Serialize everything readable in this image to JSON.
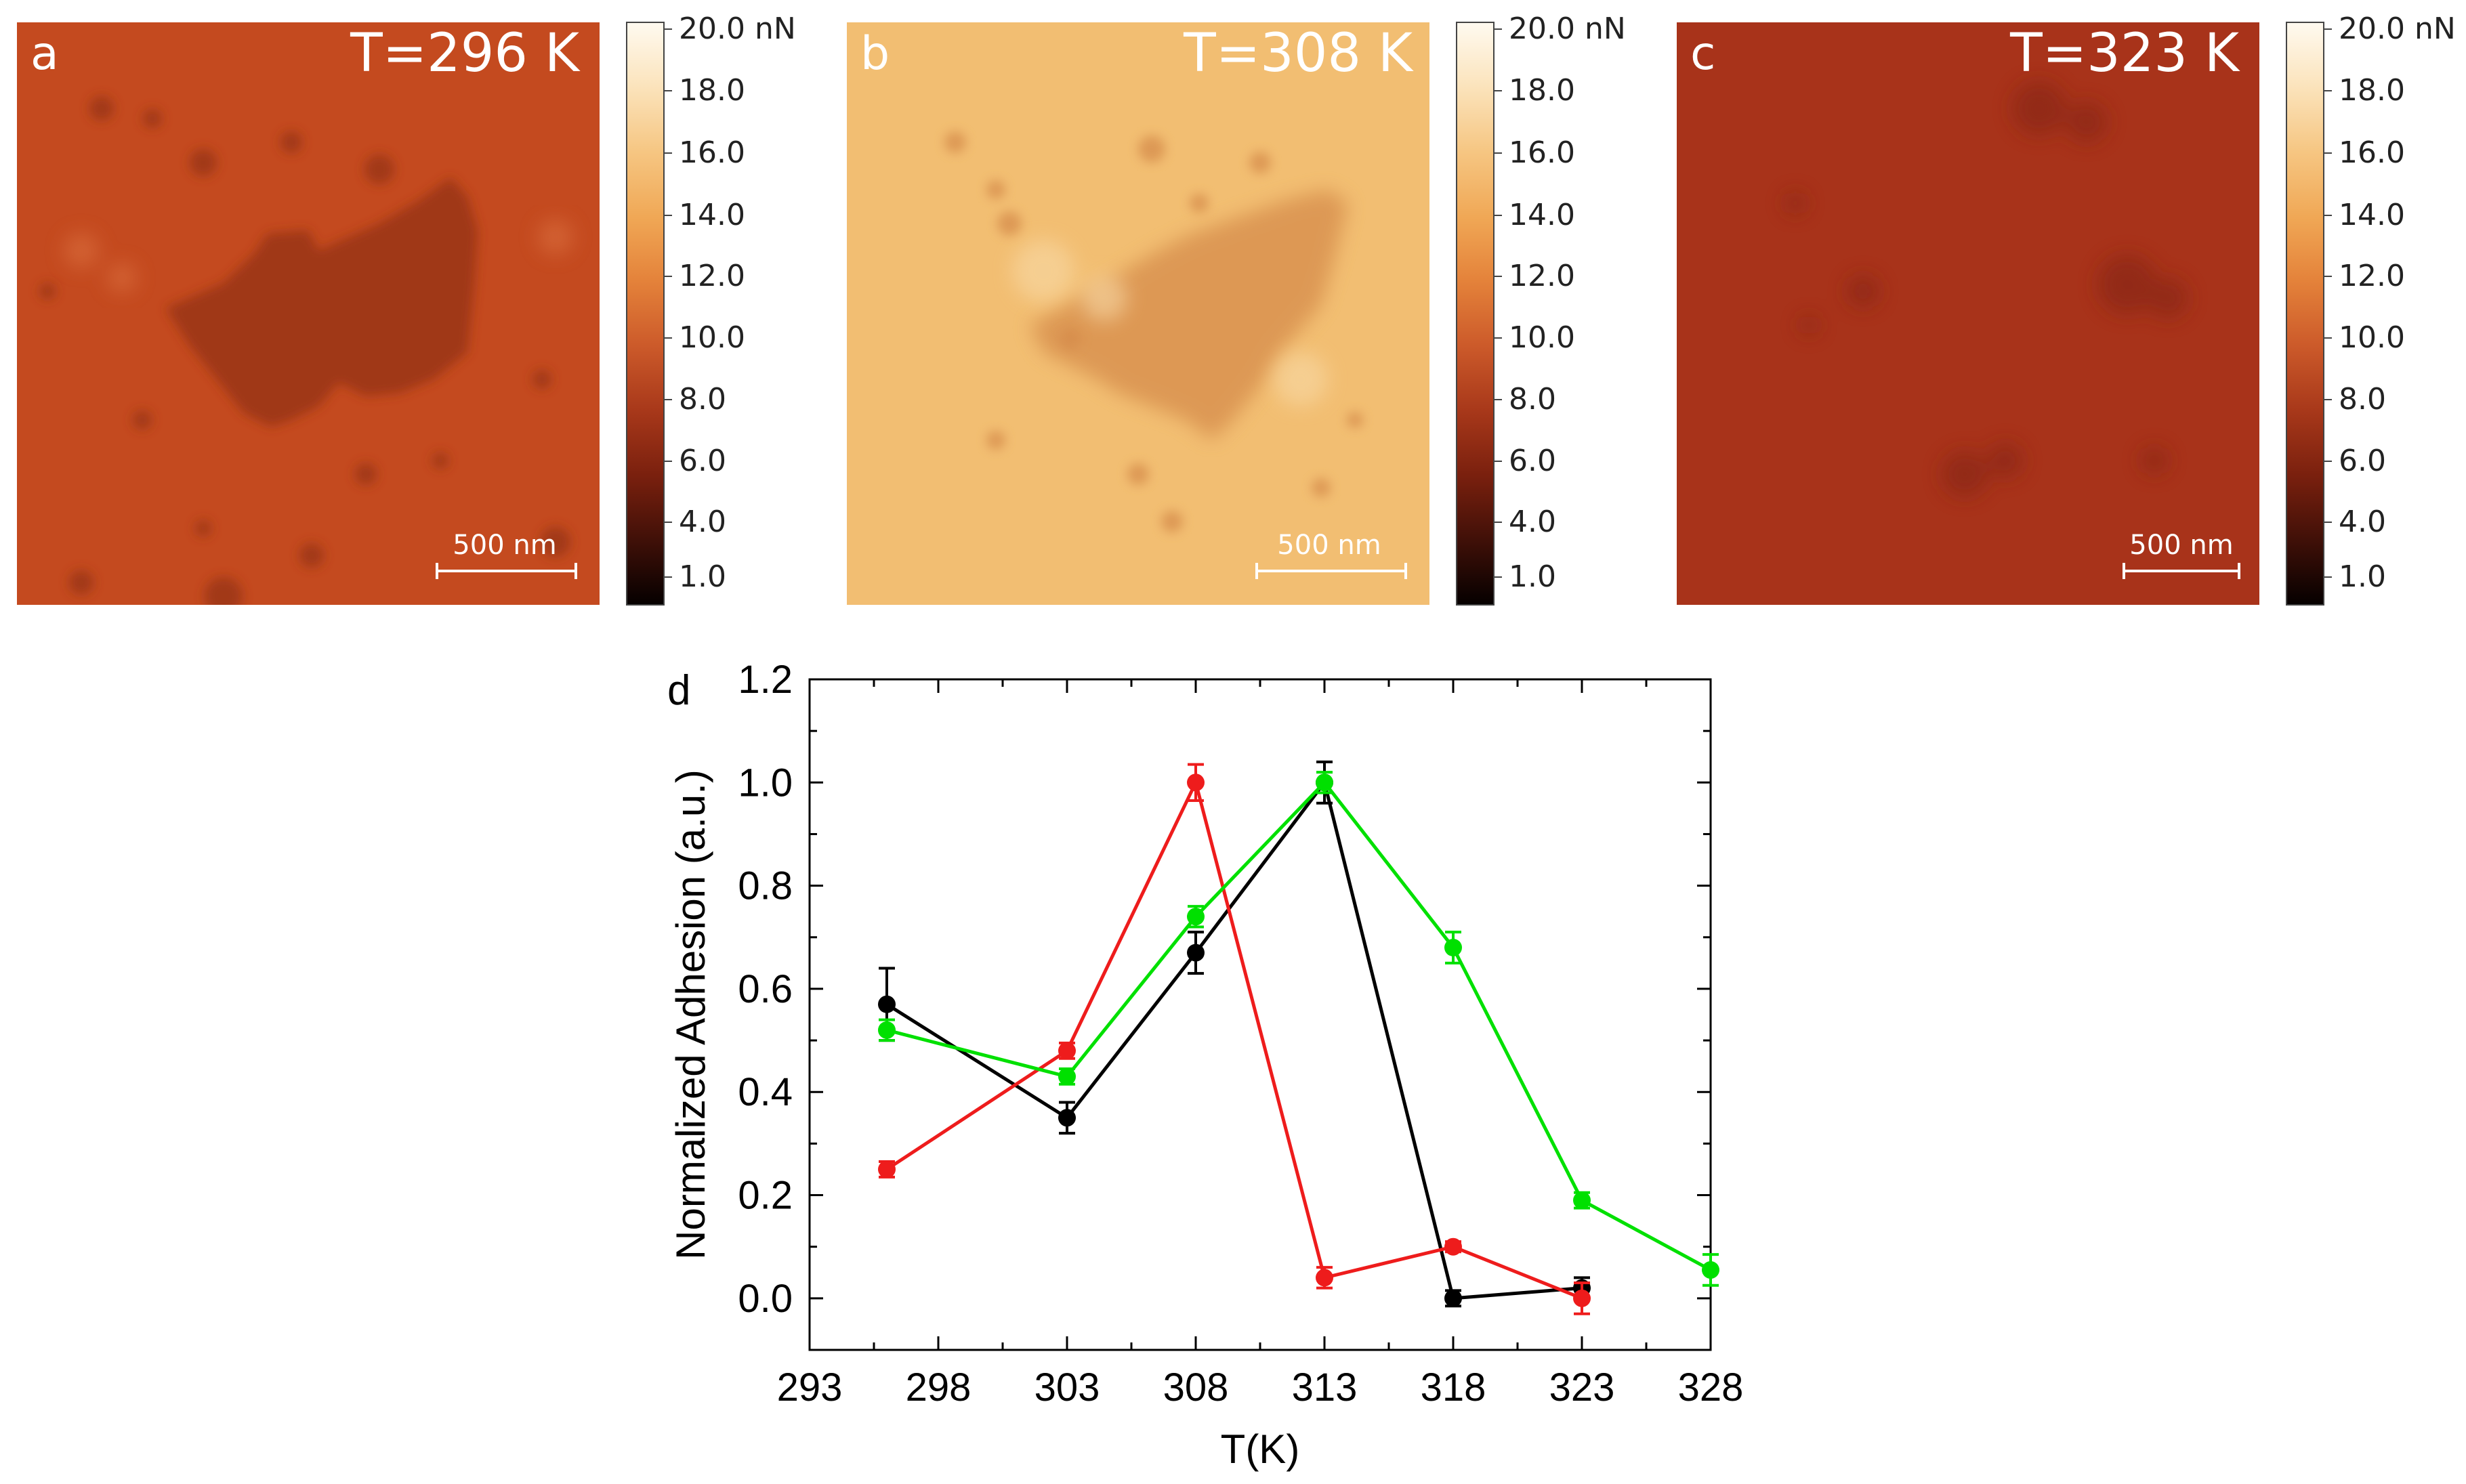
{
  "afm_panels": [
    {
      "letter": "a",
      "temperature": "T=296 K",
      "scale_bar": "500 nm",
      "base_color": "#c44a1f",
      "dark_color": "#9a3413"
    },
    {
      "letter": "b",
      "temperature": "T=308 K",
      "scale_bar": "500 nm",
      "base_color": "#f2be72",
      "dark_color": "#d68c4c"
    },
    {
      "letter": "c",
      "temperature": "T=323 K",
      "scale_bar": "500 nm",
      "base_color": "#a8331a",
      "dark_color": "#8a2612"
    }
  ],
  "colorbar": {
    "labels": [
      "20.0 nN",
      "18.0",
      "16.0",
      "14.0",
      "12.0",
      "10.0",
      "8.0",
      "6.0",
      "4.0",
      "1.0"
    ],
    "gradient": [
      "#fffaf0",
      "#fbe3bb",
      "#f6c682",
      "#f0a856",
      "#e4823a",
      "#cc5a2a",
      "#a8381a",
      "#7a200e",
      "#401008",
      "#050000"
    ]
  },
  "chart_data": {
    "type": "line",
    "panel_label": "d",
    "xlabel": "T(K)",
    "ylabel": "Normalized Adhesion (a.u.)",
    "xlim": [
      293,
      328
    ],
    "ylim": [
      -0.1,
      1.2
    ],
    "xticks": [
      293,
      298,
      303,
      308,
      313,
      318,
      323,
      328
    ],
    "yticks": [
      0.0,
      0.2,
      0.4,
      0.6,
      0.8,
      1.0,
      1.2
    ],
    "xtick_labels": [
      "293",
      "298",
      "303",
      "308",
      "313",
      "318",
      "323",
      "328"
    ],
    "ytick_labels": [
      "0.0",
      "0.2",
      "0.4",
      "0.6",
      "0.8",
      "1.0",
      "1.2"
    ],
    "series": [
      {
        "name": "black",
        "color": "#000000",
        "x": [
          296,
          303,
          308,
          313,
          318,
          323
        ],
        "y": [
          0.57,
          0.35,
          0.67,
          1.0,
          0.0,
          0.02
        ],
        "err": [
          0.07,
          0.03,
          0.04,
          0.04,
          0.015,
          0.02
        ]
      },
      {
        "name": "red",
        "color": "#ee1c1c",
        "x": [
          296,
          303,
          308,
          313,
          318,
          323
        ],
        "y": [
          0.25,
          0.48,
          1.0,
          0.04,
          0.1,
          0.0
        ],
        "err": [
          0.015,
          0.015,
          0.035,
          0.02,
          0.01,
          0.03
        ]
      },
      {
        "name": "green",
        "color": "#00e000",
        "x": [
          296,
          303,
          308,
          313,
          318,
          323,
          328
        ],
        "y": [
          0.52,
          0.43,
          0.74,
          1.0,
          0.68,
          0.19,
          0.055
        ],
        "err": [
          0.02,
          0.015,
          0.02,
          0.02,
          0.03,
          0.015,
          0.03
        ]
      }
    ]
  }
}
